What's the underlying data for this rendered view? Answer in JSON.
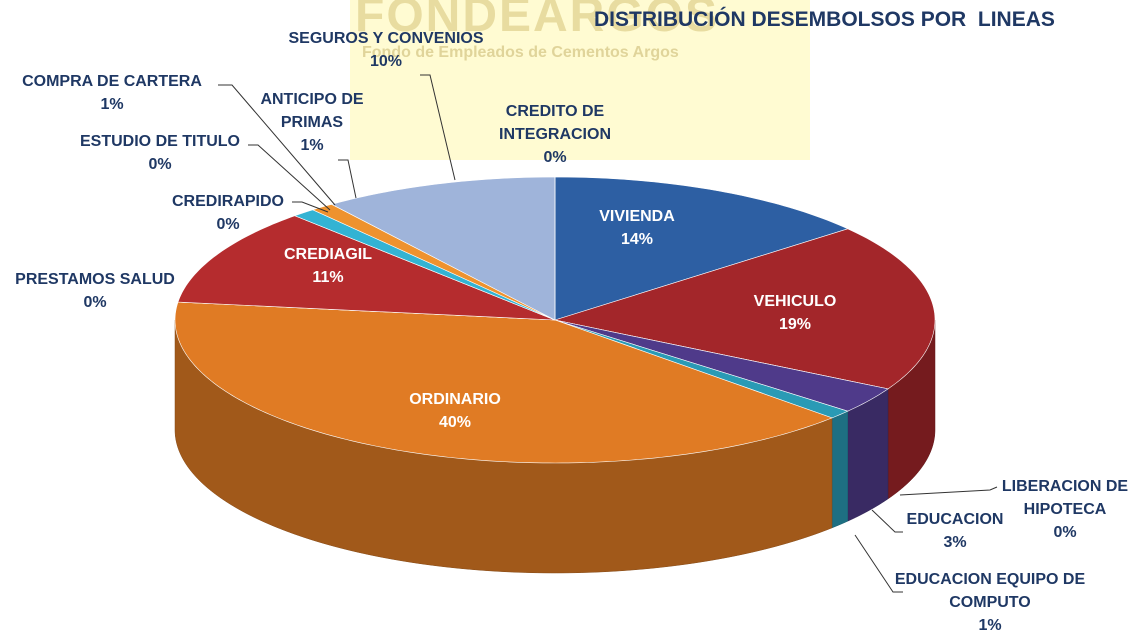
{
  "chart_data": {
    "type": "pie3d",
    "title": "DISTRIBUCIÓN DESEMBOLSOS POR  LINEAS",
    "watermark": {
      "title": "FONDEARGOS",
      "subtitle": "Fondo de Empleados de Cementos Argos"
    },
    "categories": [
      "VIVIENDA",
      "VEHICULO",
      "LIBERACION DE HIPOTECA",
      "EDUCACION",
      "EDUCACION EQUIPO DE COMPUTO",
      "ORDINARIO",
      "PRESTAMOS SALUD",
      "CREDIAGIL",
      "CREDIRAPIDO",
      "ESTUDIO DE TITULO",
      "COMPRA DE CARTERA",
      "ANTICIPO DE PRIMAS",
      "SEGUROS Y CONVENIOS",
      "CREDITO DE INTEGRACION"
    ],
    "values": [
      14,
      19,
      0,
      3,
      1,
      40,
      0,
      11,
      0,
      0,
      1,
      1,
      10,
      0
    ],
    "value_labels": [
      "14%",
      "19%",
      "0%",
      "3%",
      "1%",
      "40%",
      "0%",
      "11%",
      "0%",
      "0%",
      "1%",
      "1%",
      "10%",
      "0%"
    ],
    "colors": [
      "#2d5fa3",
      "#a3262a",
      "#6a5aa8",
      "#4f3a8a",
      "#2a9ab5",
      "#e07b24",
      "#8fa0b8",
      "#b52c2e",
      "#7aa7d6",
      "#9bbb59",
      "#33b3d3",
      "#ee922e",
      "#9fb4da",
      "#c9d3e8"
    ]
  }
}
